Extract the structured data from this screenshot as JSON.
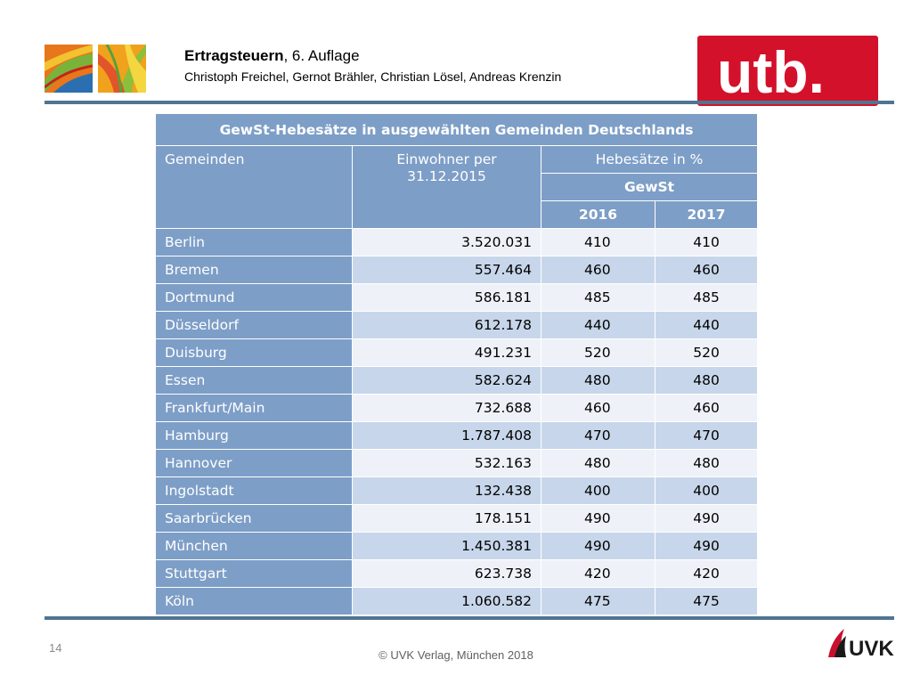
{
  "header": {
    "book_title": "Ertragsteuern",
    "edition": ", 6. Auflage",
    "authors": "Christoph Freichel, Gernot Brähler, Christian Lösel, Andreas Krenzin",
    "publisher_logo": "utb."
  },
  "table": {
    "title": "GewSt-Hebesätze in ausgewählten Gemeinden Deutschlands",
    "headers": {
      "municipalities": "Gemeinden",
      "population_line1": "Einwohner per",
      "population_line2": "31.12.2015",
      "rates": "Hebesätze in %",
      "tax": "GewSt",
      "year1": "2016",
      "year2": "2017"
    },
    "rows": [
      {
        "city": "Berlin",
        "population": "3.520.031",
        "rate_2016": "410",
        "rate_2017": "410"
      },
      {
        "city": "Bremen",
        "population": "557.464",
        "rate_2016": "460",
        "rate_2017": "460"
      },
      {
        "city": "Dortmund",
        "population": "586.181",
        "rate_2016": "485",
        "rate_2017": "485"
      },
      {
        "city": "Düsseldorf",
        "population": "612.178",
        "rate_2016": "440",
        "rate_2017": "440"
      },
      {
        "city": "Duisburg",
        "population": "491.231",
        "rate_2016": "520",
        "rate_2017": "520"
      },
      {
        "city": "Essen",
        "population": "582.624",
        "rate_2016": "480",
        "rate_2017": "480"
      },
      {
        "city": "Frankfurt/Main",
        "population": "732.688",
        "rate_2016": "460",
        "rate_2017": "460"
      },
      {
        "city": "Hamburg",
        "population": "1.787.408",
        "rate_2016": "470",
        "rate_2017": "470"
      },
      {
        "city": "Hannover",
        "population": "532.163",
        "rate_2016": "480",
        "rate_2017": "480"
      },
      {
        "city": "Ingolstadt",
        "population": "132.438",
        "rate_2016": "400",
        "rate_2017": "400"
      },
      {
        "city": "Saarbrücken",
        "population": "178.151",
        "rate_2016": "490",
        "rate_2017": "490"
      },
      {
        "city": "München",
        "population": "1.450.381",
        "rate_2016": "490",
        "rate_2017": "490"
      },
      {
        "city": "Stuttgart",
        "population": "623.738",
        "rate_2016": "420",
        "rate_2017": "420"
      },
      {
        "city": "Köln",
        "population": "1.060.582",
        "rate_2016": "475",
        "rate_2017": "475"
      }
    ]
  },
  "footer": {
    "page_number": "14",
    "copyright": "© UVK Verlag, München 2018",
    "publisher_logo": "UVK"
  },
  "colors": {
    "header_blue": "#7d9ec7",
    "row_light": "#eef2f8",
    "row_mid": "#c7d6ea",
    "rule": "#4f7592",
    "utb_red": "#d4112a"
  }
}
